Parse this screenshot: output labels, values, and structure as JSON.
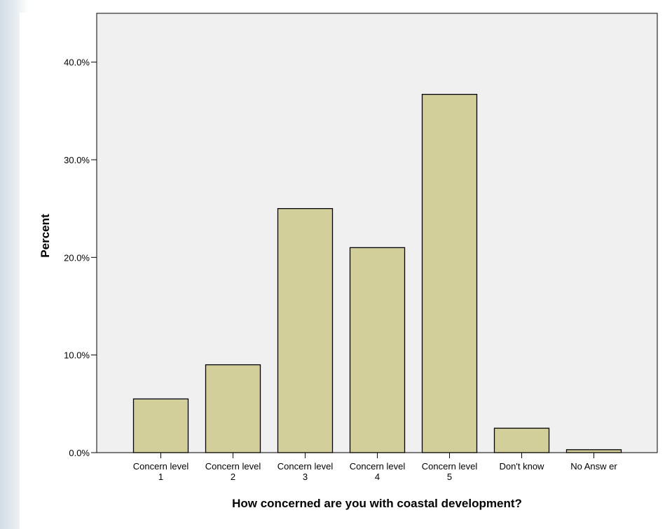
{
  "chart_data": {
    "type": "bar",
    "title": "",
    "xlabel": "How concerned are you with coastal development?",
    "ylabel": "Percent",
    "categories": [
      [
        "Concern level",
        "1"
      ],
      [
        "Concern level",
        "2"
      ],
      [
        "Concern level",
        "3"
      ],
      [
        "Concern level",
        "4"
      ],
      [
        "Concern level",
        "5"
      ],
      [
        "Don't know"
      ],
      [
        "No Answ er"
      ]
    ],
    "values": [
      5.5,
      9.0,
      25.0,
      21.0,
      36.7,
      2.5,
      0.3
    ],
    "ylim": [
      0,
      45
    ],
    "yticks": [
      0,
      10,
      20,
      30,
      40
    ],
    "ytick_labels": [
      "0.0%",
      "10.0%",
      "20.0%",
      "30.0%",
      "40.0%"
    ],
    "grid": false,
    "legend": "none",
    "colors": {
      "bar_fill": "#d3cf9a",
      "bar_stroke": "#000000",
      "plot_background": "#f0f0f0"
    }
  }
}
